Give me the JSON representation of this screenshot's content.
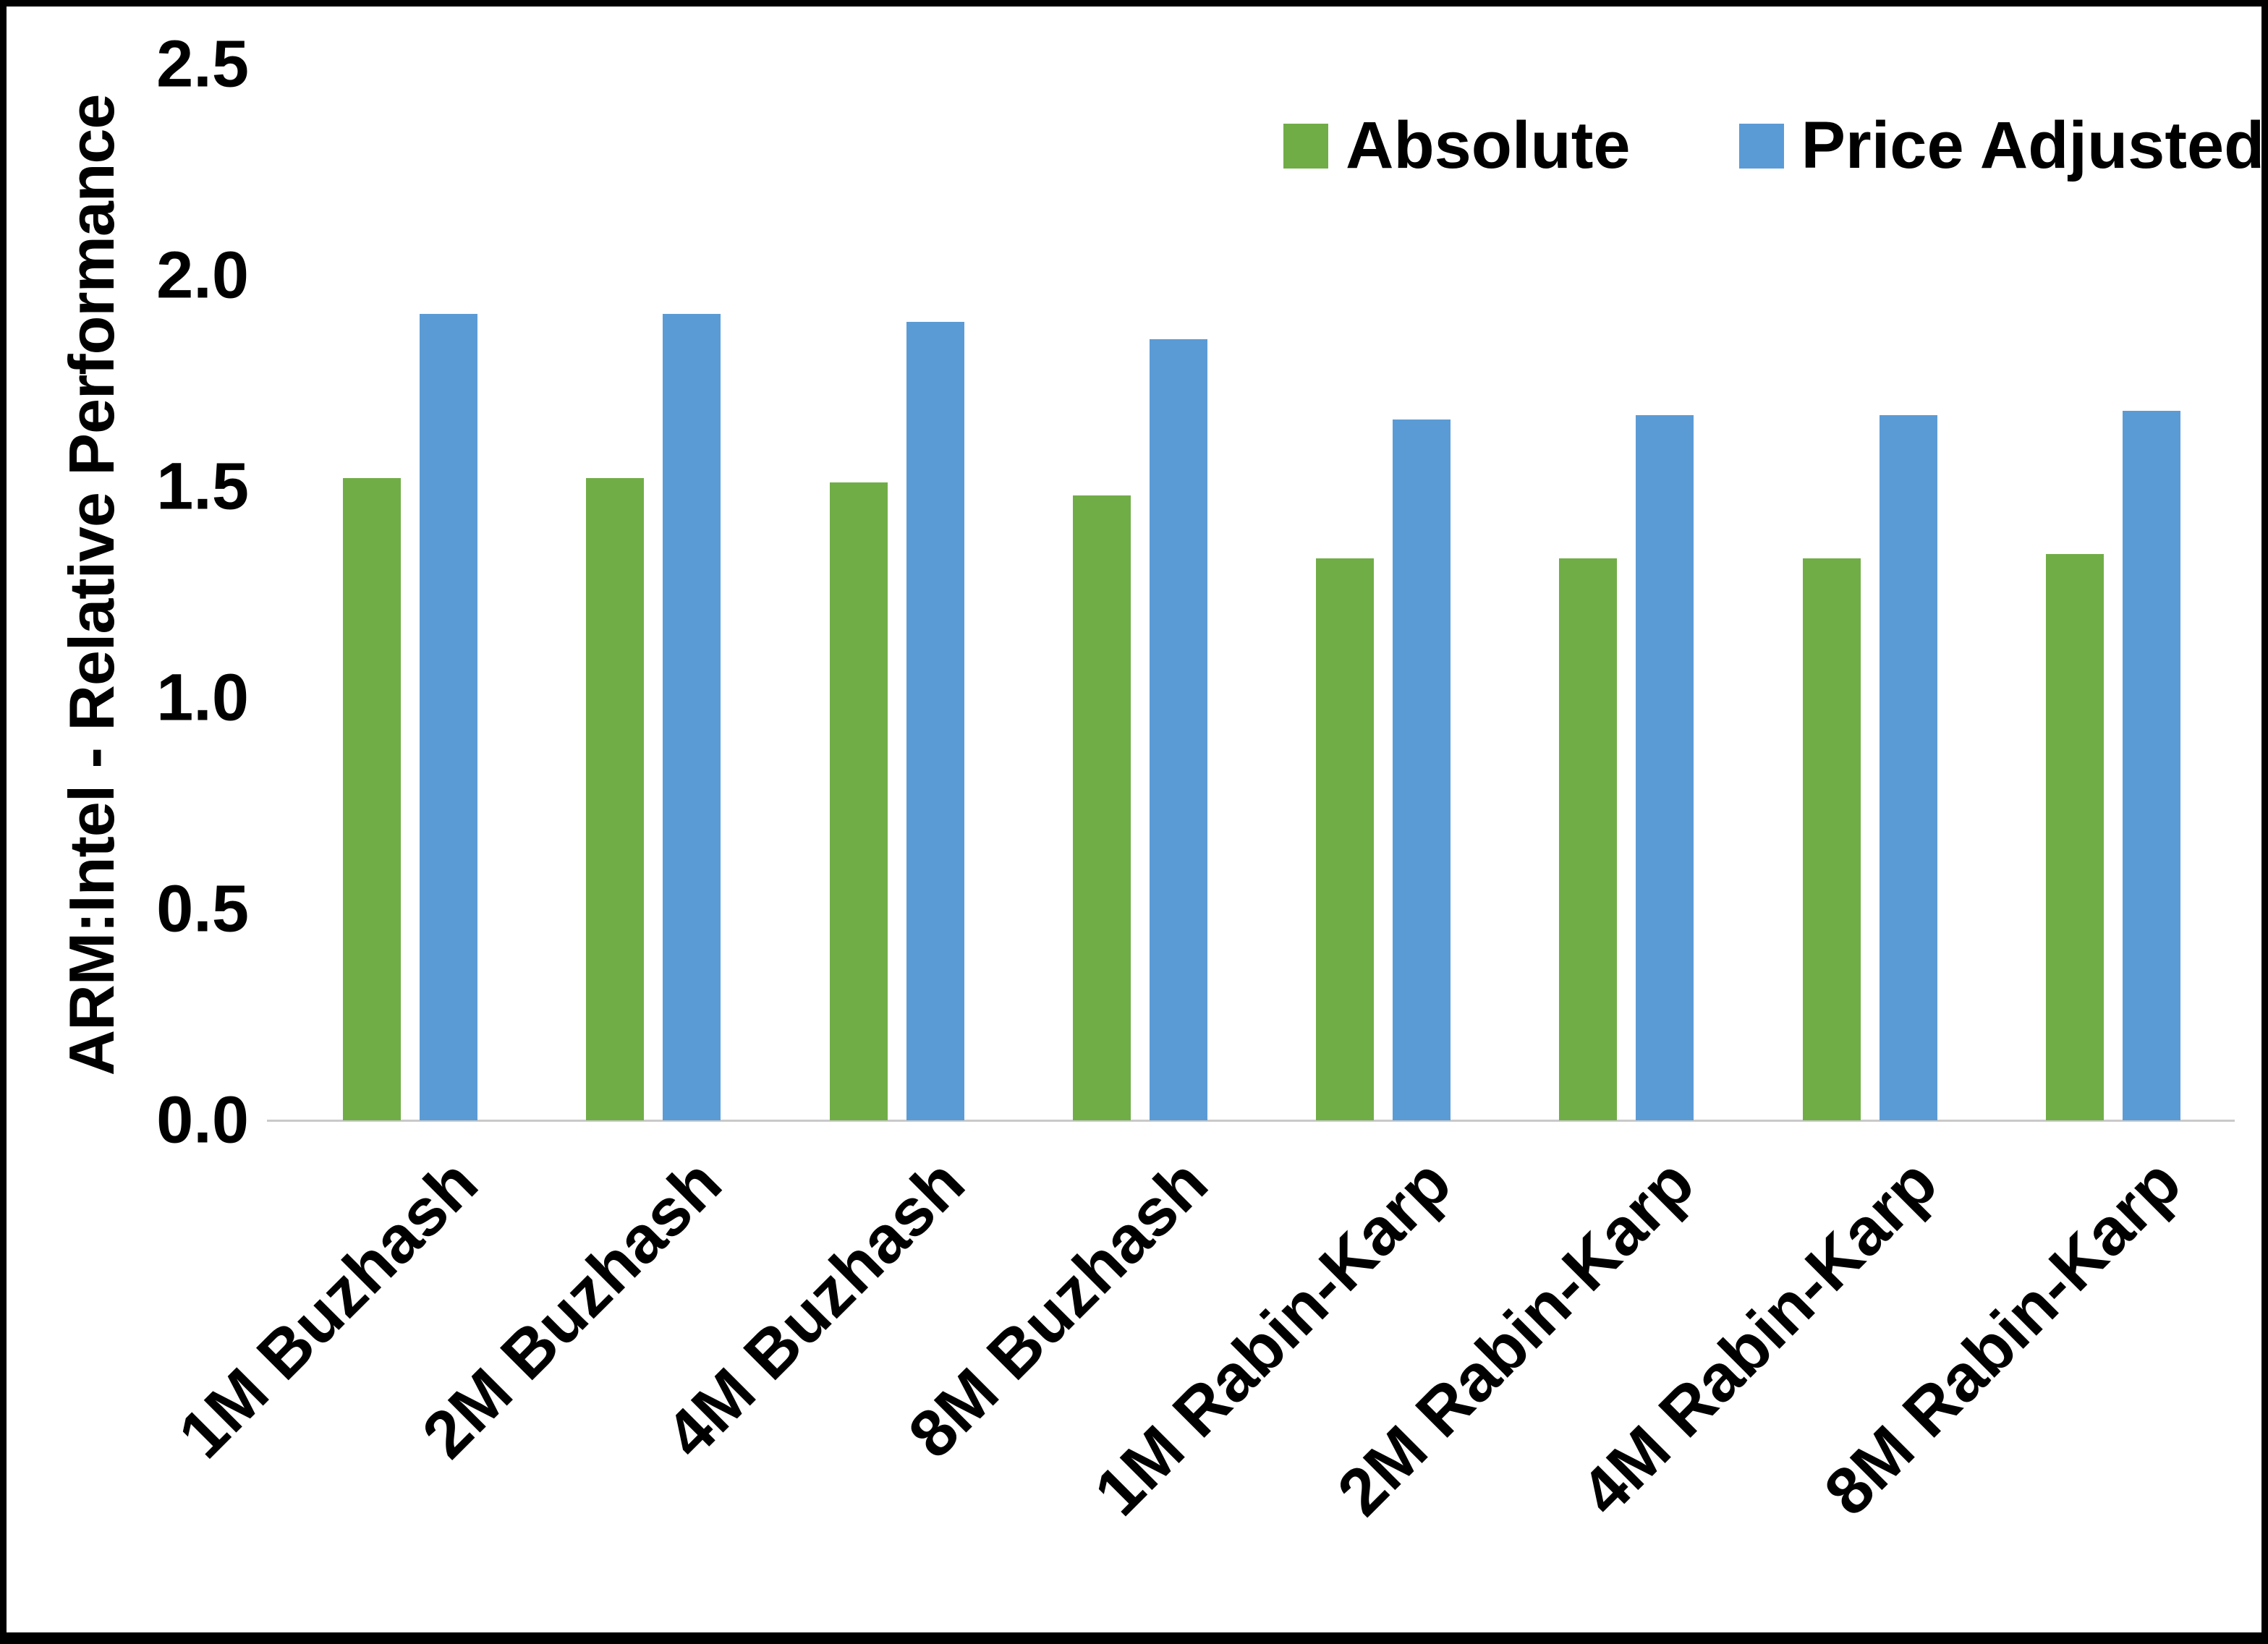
{
  "chart_data": {
    "type": "bar",
    "title": "",
    "xlabel": "",
    "ylabel": "ARM:Intel - Relative Performance",
    "ylim": [
      0,
      2.5
    ],
    "yticks": [
      "0.0",
      "0.5",
      "1.0",
      "1.5",
      "2.0",
      "2.5"
    ],
    "grid": false,
    "legend_position": "top-right",
    "categories": [
      "1M Buzhash",
      "2M Buzhash",
      "4M Buzhash",
      "8M Buzhash",
      "1M Rabin-Karp",
      "2M Rabin-Karp",
      "4M Rabin-Karp",
      "8M Rabin-Karp"
    ],
    "series": [
      {
        "name": "Absolute",
        "color": "#70AD47",
        "values": [
          1.52,
          1.52,
          1.51,
          1.48,
          1.33,
          1.33,
          1.33,
          1.34
        ]
      },
      {
        "name": "Price Adjusted",
        "color": "#5B9BD5",
        "values": [
          1.91,
          1.91,
          1.89,
          1.85,
          1.66,
          1.67,
          1.67,
          1.68
        ]
      }
    ]
  },
  "colors": {
    "background": "#ffffff",
    "border": "#000000",
    "axis_line": "#c9c9c9",
    "text": "#000000"
  }
}
